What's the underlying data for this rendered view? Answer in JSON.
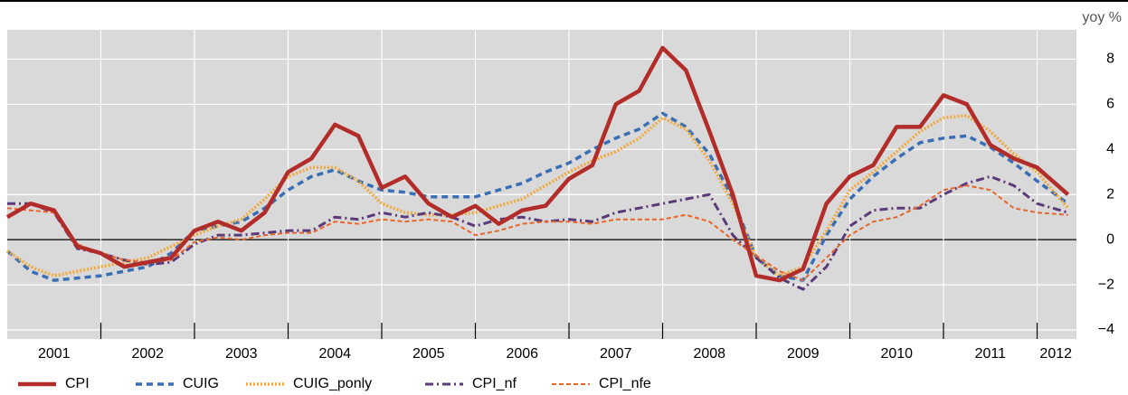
{
  "chart_data": {
    "type": "line",
    "y_axis_label": "yoy %",
    "x": [
      2001,
      2001.25,
      2001.5,
      2001.75,
      2002,
      2002.25,
      2002.5,
      2002.75,
      2003,
      2003.25,
      2003.5,
      2003.75,
      2004,
      2004.25,
      2004.5,
      2004.75,
      2005,
      2005.25,
      2005.5,
      2005.75,
      2006,
      2006.25,
      2006.5,
      2006.75,
      2007,
      2007.25,
      2007.5,
      2007.75,
      2008,
      2008.25,
      2008.5,
      2008.75,
      2009,
      2009.25,
      2009.5,
      2009.75,
      2010,
      2010.25,
      2010.5,
      2010.75,
      2011,
      2011.25,
      2011.5,
      2011.75,
      2012,
      2012.33
    ],
    "xlim": [
      2001,
      2012.42
    ],
    "xticks": [
      {
        "value": 2001.5,
        "label": "2001"
      },
      {
        "value": 2002.5,
        "label": "2002"
      },
      {
        "value": 2003.5,
        "label": "2003"
      },
      {
        "value": 2004.5,
        "label": "2004"
      },
      {
        "value": 2005.5,
        "label": "2005"
      },
      {
        "value": 2006.5,
        "label": "2006"
      },
      {
        "value": 2007.5,
        "label": "2007"
      },
      {
        "value": 2008.5,
        "label": "2008"
      },
      {
        "value": 2009.5,
        "label": "2009"
      },
      {
        "value": 2010.5,
        "label": "2010"
      },
      {
        "value": 2011.5,
        "label": "2011"
      },
      {
        "value": 2012.2,
        "label": "2012"
      }
    ],
    "ylim": [
      -4.4,
      9.3
    ],
    "yticks": [
      {
        "value": -4,
        "label": "−4"
      },
      {
        "value": -2,
        "label": "−2"
      },
      0,
      2,
      4,
      6,
      8
    ],
    "grid": true,
    "legend": "bottom",
    "series": [
      {
        "name": "CPI",
        "color": "#b22d2a",
        "line_style": "solid",
        "values": [
          1.0,
          1.6,
          1.3,
          -0.3,
          -0.6,
          -1.2,
          -1.0,
          -0.8,
          0.4,
          0.8,
          0.4,
          1.2,
          3.0,
          3.6,
          5.1,
          4.6,
          2.3,
          2.8,
          1.6,
          1.0,
          1.5,
          0.7,
          1.3,
          1.5,
          2.7,
          3.3,
          6.0,
          6.6,
          8.5,
          7.5,
          4.8,
          2.0,
          -1.6,
          -1.8,
          -1.3,
          1.6,
          2.8,
          3.3,
          5.0,
          5.0,
          6.4,
          6.0,
          4.2,
          3.6,
          3.2,
          2.0
        ]
      },
      {
        "name": "CUIG",
        "color": "#3a6fb5",
        "line_style": "dash",
        "values": [
          -0.5,
          -1.4,
          -1.8,
          -1.7,
          -1.6,
          -1.4,
          -1.2,
          -0.6,
          0.4,
          0.6,
          0.8,
          1.4,
          2.2,
          2.8,
          3.1,
          2.6,
          2.2,
          2.1,
          1.9,
          1.9,
          1.9,
          2.2,
          2.5,
          3.0,
          3.4,
          4.0,
          4.5,
          4.9,
          5.6,
          5.0,
          3.8,
          1.8,
          -0.8,
          -1.6,
          -1.8,
          0.2,
          1.8,
          2.8,
          3.6,
          4.3,
          4.5,
          4.6,
          4.1,
          3.4,
          2.6,
          1.6
        ]
      },
      {
        "name": "CUIG_ponly",
        "color": "#f2a93b",
        "line_style": "dot",
        "values": [
          -0.5,
          -1.2,
          -1.6,
          -1.4,
          -1.2,
          -1.0,
          -0.8,
          -0.3,
          0.2,
          0.6,
          0.9,
          1.8,
          2.8,
          3.2,
          3.2,
          2.6,
          1.6,
          1.2,
          1.1,
          1.1,
          1.2,
          1.5,
          1.8,
          2.4,
          3.0,
          3.5,
          3.9,
          4.5,
          5.4,
          4.9,
          3.5,
          1.6,
          -0.8,
          -1.6,
          -1.2,
          0.4,
          2.2,
          3.0,
          3.9,
          4.8,
          5.4,
          5.5,
          4.8,
          3.8,
          3.0,
          1.4
        ]
      },
      {
        "name": "CPI_nf",
        "color": "#5b3a7a",
        "line_style": "dashdot",
        "values": [
          1.6,
          1.6,
          1.2,
          -0.4,
          -0.6,
          -0.9,
          -1.1,
          -1.0,
          -0.2,
          0.2,
          0.2,
          0.3,
          0.4,
          0.4,
          1.0,
          0.9,
          1.2,
          1.0,
          1.2,
          1.0,
          0.6,
          0.9,
          1.0,
          0.8,
          0.9,
          0.8,
          1.2,
          1.4,
          1.6,
          1.8,
          2.0,
          0.2,
          -0.8,
          -1.7,
          -2.2,
          -1.2,
          0.6,
          1.3,
          1.4,
          1.4,
          2.0,
          2.5,
          2.8,
          2.4,
          1.6,
          1.2
        ]
      },
      {
        "name": "CPI_nfe",
        "color": "#e8652a",
        "line_style": "shortdash",
        "values": [
          1.4,
          1.3,
          1.2,
          -0.2,
          -0.6,
          -0.9,
          -1.0,
          -0.9,
          -0.1,
          0.1,
          0.0,
          0.2,
          0.3,
          0.3,
          0.8,
          0.7,
          0.9,
          0.8,
          0.9,
          0.8,
          0.2,
          0.4,
          0.7,
          0.8,
          0.8,
          0.7,
          0.9,
          0.9,
          0.9,
          1.1,
          0.8,
          0.0,
          -0.7,
          -1.4,
          -1.8,
          -0.8,
          0.2,
          0.8,
          1.0,
          1.5,
          2.2,
          2.4,
          2.2,
          1.4,
          1.2,
          1.1
        ]
      }
    ]
  }
}
